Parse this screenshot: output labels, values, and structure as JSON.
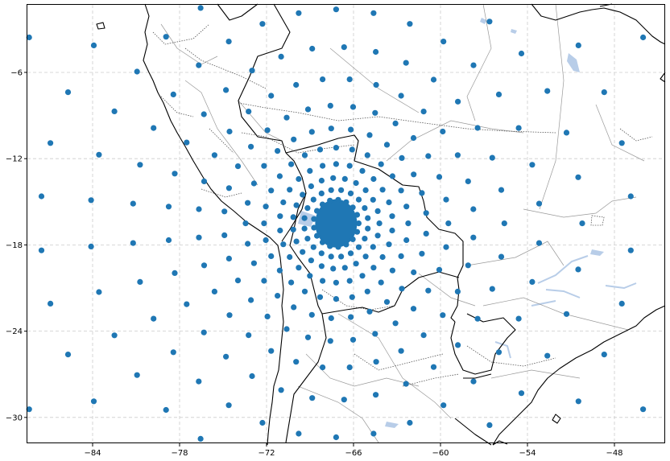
{
  "map": {
    "lon_range": [
      -88.5,
      -44.5
    ],
    "lat_range": [
      -31.8,
      -1.3
    ],
    "x_ticks": [
      -84,
      -78,
      -72,
      -66,
      -60,
      -54,
      -48
    ],
    "y_ticks": [
      -6,
      -12,
      -18,
      -24,
      -30
    ],
    "x_tick_labels": [
      "−84",
      "−78",
      "−72",
      "−66",
      "−60",
      "−54",
      "−48"
    ],
    "y_tick_labels": [
      "−6",
      "−12",
      "−18",
      "−24",
      "−30"
    ],
    "gridlines": "dashed",
    "colors": {
      "point": "#1f77b4",
      "coast": "#000000",
      "country_border": "#000000",
      "state_border": "#999999",
      "water": "#b8cde8",
      "grid": "#cccccc"
    },
    "grid_center": {
      "lon": -67.2,
      "lat": -16.5
    },
    "points_description": "Stretched grid of sample points concentrated around the center; spacing increases radially outward"
  }
}
